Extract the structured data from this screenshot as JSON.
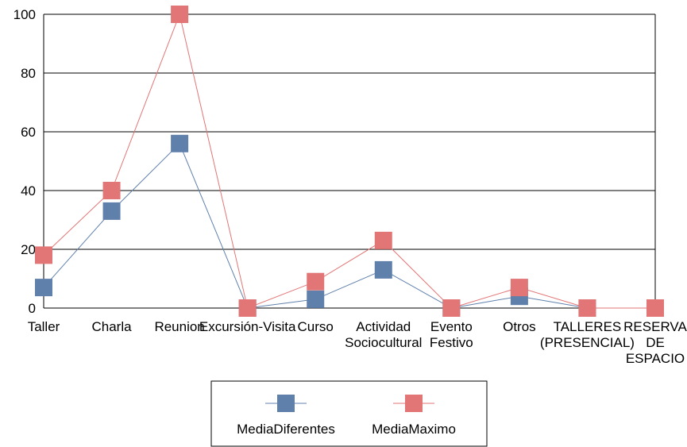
{
  "chart_data": {
    "type": "line",
    "categories": [
      [
        "Taller"
      ],
      [
        "Charla"
      ],
      [
        "Reunion"
      ],
      [
        "Excursión-Visita"
      ],
      [
        "Curso"
      ],
      [
        "Actividad",
        "Sociocultural"
      ],
      [
        "Evento",
        "Festivo"
      ],
      [
        "Otros"
      ],
      [
        "TALLERES",
        "(PRESENCIAL)"
      ],
      [
        "RESERVA",
        "DE",
        "ESPACIO"
      ]
    ],
    "series": [
      {
        "name": "MediaDiferentes",
        "color": "#6080ac",
        "values": [
          7,
          33,
          56,
          0,
          3,
          13,
          0,
          4,
          0,
          0
        ]
      },
      {
        "name": "MediaMaximo",
        "color": "#e27576",
        "values": [
          18,
          40,
          100,
          0,
          9,
          23,
          0,
          7,
          0,
          0
        ]
      }
    ],
    "ylim": [
      0,
      100
    ],
    "yticks": [
      "0",
      "20",
      "40",
      "60",
      "80",
      "100"
    ],
    "grid": true,
    "legend_position": "bottom-center"
  }
}
